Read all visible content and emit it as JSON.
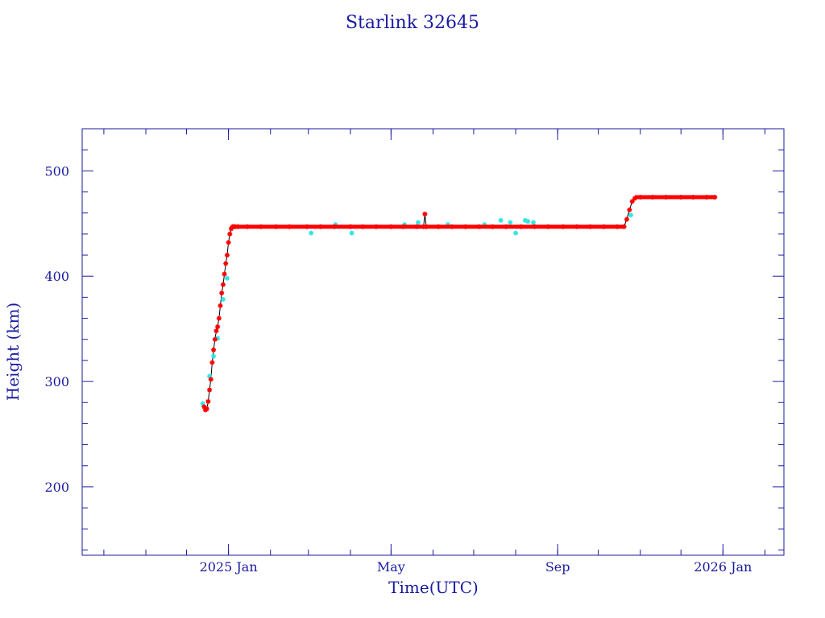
{
  "chart_data": {
    "type": "scatter",
    "title": "Starlink 32645",
    "xlabel": "Time(UTC)",
    "ylabel": "Height (km)",
    "ylim": [
      135,
      540
    ],
    "xlim": [
      "2024-09-15",
      "2026-02-15"
    ],
    "xticks": [
      {
        "date": "2025-01-01",
        "label": "2025 Jan"
      },
      {
        "date": "2025-05-01",
        "label": "May"
      },
      {
        "date": "2025-09-01",
        "label": "Sep"
      },
      {
        "date": "2026-01-01",
        "label": "2026 Jan"
      }
    ],
    "yticks": [
      200,
      300,
      400,
      500
    ],
    "grid": false,
    "colors": {
      "axis": "#1a1aa0",
      "primary": "#ff0000",
      "secondary": "#33e5e5",
      "line": "#000000"
    },
    "series": [
      {
        "marker_color": "#ff0000",
        "x": [
          "2024-12-14",
          "2024-12-15",
          "2024-12-16",
          "2024-12-17",
          "2024-12-18",
          "2024-12-19",
          "2024-12-20",
          "2024-12-21",
          "2024-12-22",
          "2024-12-23",
          "2024-12-24",
          "2024-12-25",
          "2024-12-26",
          "2024-12-27",
          "2024-12-28",
          "2024-12-29",
          "2024-12-30",
          "2024-12-31",
          "2025-01-01",
          "2025-01-02",
          "2025-01-03",
          "2025-01-04",
          "2025-01-05",
          "2025-01-06",
          "2025-01-08",
          "2025-01-15",
          "2025-01-25",
          "2025-02-05",
          "2025-02-15",
          "2025-02-28",
          "2025-03-10",
          "2025-03-20",
          "2025-04-01",
          "2025-04-10",
          "2025-04-20",
          "2025-05-01",
          "2025-05-10",
          "2025-05-20",
          "2025-05-25",
          "2025-05-26",
          "2025-05-27",
          "2025-06-05",
          "2025-06-15",
          "2025-06-25",
          "2025-07-05",
          "2025-07-15",
          "2025-07-25",
          "2025-08-05",
          "2025-08-15",
          "2025-08-25",
          "2025-09-05",
          "2025-09-15",
          "2025-09-25",
          "2025-10-05",
          "2025-10-15",
          "2025-10-20",
          "2025-10-22",
          "2025-10-24",
          "2025-10-26",
          "2025-10-28",
          "2025-11-01",
          "2025-11-10",
          "2025-11-20",
          "2025-12-01",
          "2025-12-10",
          "2025-12-20",
          "2025-12-26"
        ],
        "y": [
          276,
          273,
          274,
          281,
          292,
          302,
          318,
          330,
          340,
          348,
          352,
          360,
          372,
          384,
          392,
          402,
          412,
          420,
          432,
          440,
          445,
          447,
          447,
          447,
          447,
          447,
          447,
          447,
          447,
          447,
          447,
          447,
          447,
          447,
          447,
          447,
          447,
          447,
          447,
          459,
          447,
          447,
          447,
          447,
          447,
          447,
          447,
          447,
          447,
          447,
          447,
          447,
          447,
          447,
          447,
          447,
          454,
          463,
          471,
          474,
          475,
          475,
          475,
          475,
          475,
          475,
          475
        ]
      },
      {
        "marker_color": "#33e5e5",
        "x": [
          "2024-12-13",
          "2024-12-18",
          "2024-12-21",
          "2024-12-24",
          "2024-12-28",
          "2024-12-31",
          "2025-03-03",
          "2025-03-21",
          "2025-04-02",
          "2025-05-11",
          "2025-05-21",
          "2025-06-12",
          "2025-07-09",
          "2025-07-21",
          "2025-07-28",
          "2025-08-01",
          "2025-08-08",
          "2025-08-10",
          "2025-08-14",
          "2025-10-25"
        ],
        "y": [
          279,
          305,
          324,
          341,
          378,
          398,
          441,
          449,
          441,
          449,
          451,
          449,
          449,
          453,
          451,
          441,
          453,
          452,
          451,
          458
        ]
      }
    ]
  }
}
